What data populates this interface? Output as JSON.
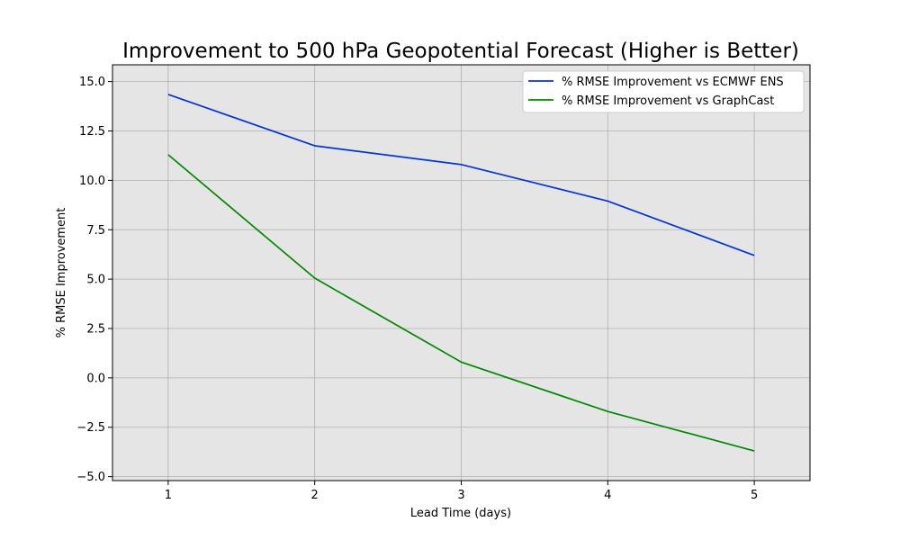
{
  "chart_data": {
    "type": "line",
    "title": "Improvement to 500 hPa Geopotential Forecast (Higher is Better)",
    "xlabel": "Lead Time (days)",
    "ylabel": "% RMSE Improvement",
    "x": [
      1,
      2,
      3,
      4,
      5
    ],
    "xticks": [
      "1",
      "2",
      "3",
      "4",
      "5"
    ],
    "yticks": [
      "−5.0",
      "−2.5",
      "0.0",
      "2.5",
      "5.0",
      "7.5",
      "10.0",
      "12.5",
      "15.0"
    ],
    "ytick_values": [
      -5.0,
      -2.5,
      0.0,
      2.5,
      5.0,
      7.5,
      10.0,
      12.5,
      15.0
    ],
    "xlim": [
      0.62,
      5.38
    ],
    "ylim": [
      -5.2,
      15.85
    ],
    "grid": true,
    "legend_position": "top-right",
    "background_color": "#e5e5e5",
    "series": [
      {
        "name": "% RMSE Improvement vs ECMWF ENS",
        "color": "#0033dd",
        "values": [
          14.35,
          11.75,
          10.8,
          8.95,
          6.2
        ]
      },
      {
        "name": "% RMSE Improvement vs GraphCast",
        "color": "#008800",
        "values": [
          11.3,
          5.05,
          0.8,
          -1.7,
          -3.7
        ]
      }
    ]
  }
}
